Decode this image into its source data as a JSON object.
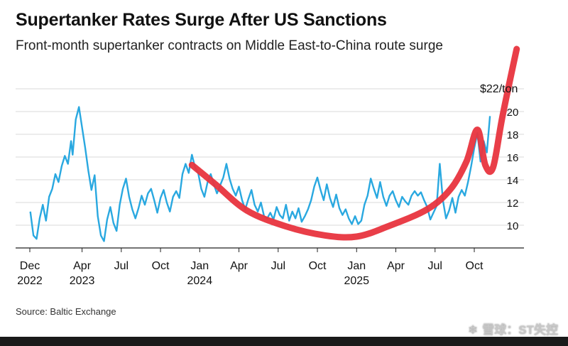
{
  "chart_data": {
    "type": "line",
    "title": "Supertanker Rates Surge After US Sanctions",
    "subtitle": "Front-month supertanker contracts on Middle East-to-China route surge",
    "ylabel": "$22/ton",
    "ylim": [
      8,
      24
    ],
    "yticks": [
      10,
      12,
      14,
      16,
      18,
      20,
      22
    ],
    "xlim": [
      2022.95,
      2025.96
    ],
    "xticks": [
      {
        "x": 2022.917,
        "label": "Dec",
        "year": "2022"
      },
      {
        "x": 2023.25,
        "label": "Apr",
        "year": "2023"
      },
      {
        "x": 2023.5,
        "label": "Jul",
        "year": ""
      },
      {
        "x": 2023.75,
        "label": "Oct",
        "year": ""
      },
      {
        "x": 2024.0,
        "label": "Jan",
        "year": "2024"
      },
      {
        "x": 2024.25,
        "label": "Apr",
        "year": ""
      },
      {
        "x": 2024.5,
        "label": "Jul",
        "year": ""
      },
      {
        "x": 2024.75,
        "label": "Oct",
        "year": ""
      },
      {
        "x": 2025.0,
        "label": "Jan",
        "year": "2025"
      },
      {
        "x": 2025.25,
        "label": "Apr",
        "year": ""
      },
      {
        "x": 2025.5,
        "label": "Jul",
        "year": ""
      },
      {
        "x": 2025.75,
        "label": "Oct",
        "year": ""
      }
    ],
    "grid": true,
    "series": [
      {
        "name": "Front-month supertanker contract",
        "color": "#29a8e0",
        "points": [
          [
            2022.92,
            11.2
          ],
          [
            2022.94,
            9.1
          ],
          [
            2022.96,
            8.8
          ],
          [
            2022.98,
            10.6
          ],
          [
            2023.0,
            11.8
          ],
          [
            2023.02,
            10.4
          ],
          [
            2023.04,
            12.5
          ],
          [
            2023.06,
            13.2
          ],
          [
            2023.08,
            14.5
          ],
          [
            2023.1,
            13.8
          ],
          [
            2023.12,
            15.2
          ],
          [
            2023.14,
            16.1
          ],
          [
            2023.16,
            15.4
          ],
          [
            2023.18,
            17.4
          ],
          [
            2023.19,
            16.2
          ],
          [
            2023.21,
            19.3
          ],
          [
            2023.23,
            20.4
          ],
          [
            2023.25,
            18.6
          ],
          [
            2023.27,
            16.8
          ],
          [
            2023.29,
            14.8
          ],
          [
            2023.31,
            13.1
          ],
          [
            2023.33,
            14.4
          ],
          [
            2023.35,
            10.8
          ],
          [
            2023.37,
            9.1
          ],
          [
            2023.39,
            8.6
          ],
          [
            2023.41,
            10.5
          ],
          [
            2023.43,
            11.6
          ],
          [
            2023.45,
            10.2
          ],
          [
            2023.47,
            9.5
          ],
          [
            2023.49,
            11.8
          ],
          [
            2023.51,
            13.2
          ],
          [
            2023.53,
            14.1
          ],
          [
            2023.55,
            12.5
          ],
          [
            2023.57,
            11.4
          ],
          [
            2023.59,
            10.6
          ],
          [
            2023.61,
            11.5
          ],
          [
            2023.63,
            12.6
          ],
          [
            2023.65,
            11.8
          ],
          [
            2023.67,
            12.8
          ],
          [
            2023.69,
            13.2
          ],
          [
            2023.71,
            12.2
          ],
          [
            2023.73,
            11.1
          ],
          [
            2023.75,
            12.4
          ],
          [
            2023.77,
            13.1
          ],
          [
            2023.79,
            12.0
          ],
          [
            2023.81,
            11.2
          ],
          [
            2023.83,
            12.5
          ],
          [
            2023.85,
            13.0
          ],
          [
            2023.87,
            12.4
          ],
          [
            2023.89,
            14.5
          ],
          [
            2023.91,
            15.4
          ],
          [
            2023.93,
            14.6
          ],
          [
            2023.95,
            16.2
          ],
          [
            2023.97,
            15.1
          ],
          [
            2023.99,
            14.6
          ],
          [
            2024.01,
            13.2
          ],
          [
            2024.03,
            12.5
          ],
          [
            2024.05,
            13.8
          ],
          [
            2024.07,
            14.5
          ],
          [
            2024.09,
            13.6
          ],
          [
            2024.11,
            12.8
          ],
          [
            2024.13,
            13.5
          ],
          [
            2024.15,
            14.2
          ],
          [
            2024.17,
            15.4
          ],
          [
            2024.19,
            14.1
          ],
          [
            2024.21,
            13.2
          ],
          [
            2024.23,
            12.6
          ],
          [
            2024.25,
            13.4
          ],
          [
            2024.27,
            12.2
          ],
          [
            2024.29,
            11.4
          ],
          [
            2024.31,
            12.3
          ],
          [
            2024.33,
            13.1
          ],
          [
            2024.35,
            11.8
          ],
          [
            2024.37,
            11.2
          ],
          [
            2024.39,
            12.0
          ],
          [
            2024.41,
            10.8
          ],
          [
            2024.43,
            10.6
          ],
          [
            2024.45,
            11.1
          ],
          [
            2024.47,
            10.5
          ],
          [
            2024.49,
            11.6
          ],
          [
            2024.51,
            10.9
          ],
          [
            2024.53,
            10.6
          ],
          [
            2024.55,
            11.8
          ],
          [
            2024.57,
            10.4
          ],
          [
            2024.59,
            11.2
          ],
          [
            2024.61,
            10.6
          ],
          [
            2024.63,
            11.5
          ],
          [
            2024.65,
            10.3
          ],
          [
            2024.67,
            10.8
          ],
          [
            2024.69,
            11.4
          ],
          [
            2024.71,
            12.2
          ],
          [
            2024.73,
            13.4
          ],
          [
            2024.75,
            14.2
          ],
          [
            2024.77,
            13.1
          ],
          [
            2024.79,
            12.2
          ],
          [
            2024.81,
            13.6
          ],
          [
            2024.83,
            12.4
          ],
          [
            2024.85,
            11.6
          ],
          [
            2024.87,
            12.7
          ],
          [
            2024.89,
            11.5
          ],
          [
            2024.91,
            10.9
          ],
          [
            2024.93,
            11.4
          ],
          [
            2024.95,
            10.6
          ],
          [
            2024.97,
            10.1
          ],
          [
            2024.99,
            10.8
          ],
          [
            2025.01,
            10.1
          ],
          [
            2025.03,
            10.4
          ],
          [
            2025.05,
            11.8
          ],
          [
            2025.07,
            12.6
          ],
          [
            2025.09,
            14.1
          ],
          [
            2025.11,
            13.2
          ],
          [
            2025.13,
            12.4
          ],
          [
            2025.15,
            13.8
          ],
          [
            2025.17,
            12.5
          ],
          [
            2025.19,
            11.7
          ],
          [
            2025.21,
            12.6
          ],
          [
            2025.23,
            13.0
          ],
          [
            2025.25,
            12.2
          ],
          [
            2025.27,
            11.6
          ],
          [
            2025.29,
            12.5
          ],
          [
            2025.31,
            12.1
          ],
          [
            2025.33,
            11.8
          ],
          [
            2025.35,
            12.6
          ],
          [
            2025.37,
            13.0
          ],
          [
            2025.39,
            12.6
          ],
          [
            2025.41,
            12.9
          ],
          [
            2025.43,
            12.2
          ],
          [
            2025.45,
            11.6
          ],
          [
            2025.47,
            10.5
          ],
          [
            2025.49,
            11.1
          ],
          [
            2025.51,
            11.7
          ],
          [
            2025.53,
            15.4
          ],
          [
            2025.55,
            12.2
          ],
          [
            2025.57,
            10.6
          ],
          [
            2025.59,
            11.3
          ],
          [
            2025.61,
            12.4
          ],
          [
            2025.63,
            11.1
          ],
          [
            2025.65,
            12.5
          ],
          [
            2025.67,
            13.1
          ],
          [
            2025.69,
            12.6
          ],
          [
            2025.71,
            13.8
          ],
          [
            2025.73,
            15.2
          ],
          [
            2025.75,
            16.8
          ],
          [
            2025.77,
            18.1
          ],
          [
            2025.79,
            15.6
          ],
          [
            2025.81,
            17.4
          ],
          [
            2025.83,
            16.4
          ],
          [
            2025.85,
            19.6
          ]
        ]
      }
    ],
    "annotation": {
      "type": "hand-drawn trend curve",
      "color": "#e8343e",
      "points": [
        [
          2023.95,
          15.3
        ],
        [
          2024.1,
          13.6
        ],
        [
          2024.3,
          11.3
        ],
        [
          2024.55,
          9.9
        ],
        [
          2024.8,
          9.1
        ],
        [
          2025.0,
          9.0
        ],
        [
          2025.2,
          9.9
        ],
        [
          2025.45,
          11.4
        ],
        [
          2025.6,
          13.2
        ],
        [
          2025.7,
          15.6
        ],
        [
          2025.77,
          18.4
        ],
        [
          2025.82,
          15.3
        ],
        [
          2025.87,
          15.1
        ],
        [
          2025.93,
          19.6
        ],
        [
          2026.02,
          25.5
        ]
      ]
    },
    "source": "Source: Baltic Exchange"
  },
  "watermark": {
    "icon": "snowball-icon",
    "text": "雪球：ST失控"
  }
}
